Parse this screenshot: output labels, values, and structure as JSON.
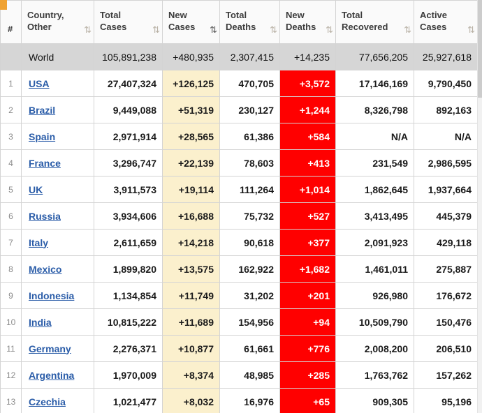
{
  "colors": {
    "new_cases_bg": "#FBF0CD",
    "new_deaths_bg": "#FF0000",
    "new_deaths_text": "#FFFFFF",
    "world_row_bg": "#D6D6D6",
    "link_blue": "#2A5CA8",
    "corner_marker_orange": "#F0A232",
    "header_bg": "#FAFAFA"
  },
  "table": {
    "sort_icon": "⇅",
    "columns": [
      {
        "key": "rank",
        "label": "#",
        "sortable": false,
        "active": false
      },
      {
        "key": "country",
        "label": "Country, Other",
        "sortable": true,
        "active": false
      },
      {
        "key": "total_cases",
        "label": "Total Cases",
        "sortable": true,
        "active": false
      },
      {
        "key": "new_cases",
        "label": "New Cases",
        "sortable": true,
        "active": true
      },
      {
        "key": "total_deaths",
        "label": "Total Deaths",
        "sortable": true,
        "active": false
      },
      {
        "key": "new_deaths",
        "label": "New Deaths",
        "sortable": true,
        "active": false
      },
      {
        "key": "total_recovered",
        "label": "Total Recovered",
        "sortable": true,
        "active": false
      },
      {
        "key": "active_cases",
        "label": "Active Cases",
        "sortable": true,
        "active": false
      }
    ],
    "world_row": {
      "rank": "",
      "country": "World",
      "total_cases": "105,891,238",
      "new_cases": "+480,935",
      "total_deaths": "2,307,415",
      "new_deaths": "+14,235",
      "total_recovered": "77,656,205",
      "active_cases": "25,927,618"
    },
    "rows": [
      {
        "rank": "1",
        "country": "USA",
        "total_cases": "27,407,324",
        "new_cases": "+126,125",
        "total_deaths": "470,705",
        "new_deaths": "+3,572",
        "total_recovered": "17,146,169",
        "active_cases": "9,790,450"
      },
      {
        "rank": "2",
        "country": "Brazil",
        "total_cases": "9,449,088",
        "new_cases": "+51,319",
        "total_deaths": "230,127",
        "new_deaths": "+1,244",
        "total_recovered": "8,326,798",
        "active_cases": "892,163"
      },
      {
        "rank": "3",
        "country": "Spain",
        "total_cases": "2,971,914",
        "new_cases": "+28,565",
        "total_deaths": "61,386",
        "new_deaths": "+584",
        "total_recovered": "N/A",
        "active_cases": "N/A"
      },
      {
        "rank": "4",
        "country": "France",
        "total_cases": "3,296,747",
        "new_cases": "+22,139",
        "total_deaths": "78,603",
        "new_deaths": "+413",
        "total_recovered": "231,549",
        "active_cases": "2,986,595"
      },
      {
        "rank": "5",
        "country": "UK",
        "total_cases": "3,911,573",
        "new_cases": "+19,114",
        "total_deaths": "111,264",
        "new_deaths": "+1,014",
        "total_recovered": "1,862,645",
        "active_cases": "1,937,664"
      },
      {
        "rank": "6",
        "country": "Russia",
        "total_cases": "3,934,606",
        "new_cases": "+16,688",
        "total_deaths": "75,732",
        "new_deaths": "+527",
        "total_recovered": "3,413,495",
        "active_cases": "445,379"
      },
      {
        "rank": "7",
        "country": "Italy",
        "total_cases": "2,611,659",
        "new_cases": "+14,218",
        "total_deaths": "90,618",
        "new_deaths": "+377",
        "total_recovered": "2,091,923",
        "active_cases": "429,118"
      },
      {
        "rank": "8",
        "country": "Mexico",
        "total_cases": "1,899,820",
        "new_cases": "+13,575",
        "total_deaths": "162,922",
        "new_deaths": "+1,682",
        "total_recovered": "1,461,011",
        "active_cases": "275,887"
      },
      {
        "rank": "9",
        "country": "Indonesia",
        "total_cases": "1,134,854",
        "new_cases": "+11,749",
        "total_deaths": "31,202",
        "new_deaths": "+201",
        "total_recovered": "926,980",
        "active_cases": "176,672"
      },
      {
        "rank": "10",
        "country": "India",
        "total_cases": "10,815,222",
        "new_cases": "+11,689",
        "total_deaths": "154,956",
        "new_deaths": "+94",
        "total_recovered": "10,509,790",
        "active_cases": "150,476"
      },
      {
        "rank": "11",
        "country": "Germany",
        "total_cases": "2,276,371",
        "new_cases": "+10,877",
        "total_deaths": "61,661",
        "new_deaths": "+776",
        "total_recovered": "2,008,200",
        "active_cases": "206,510"
      },
      {
        "rank": "12",
        "country": "Argentina",
        "total_cases": "1,970,009",
        "new_cases": "+8,374",
        "total_deaths": "48,985",
        "new_deaths": "+285",
        "total_recovered": "1,763,762",
        "active_cases": "157,262"
      },
      {
        "rank": "13",
        "country": "Czechia",
        "total_cases": "1,021,477",
        "new_cases": "+8,032",
        "total_deaths": "16,976",
        "new_deaths": "+65",
        "total_recovered": "909,305",
        "active_cases": "95,196"
      }
    ]
  }
}
